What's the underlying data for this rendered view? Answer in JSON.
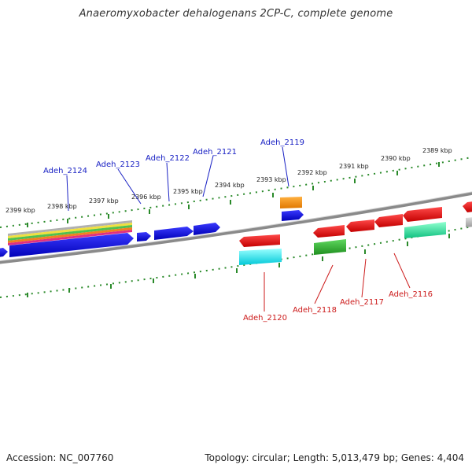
{
  "title": "Anaeromyxobacter dehalogenans 2CP-C, complete genome",
  "footer": {
    "accession": "Accession: NC_007760",
    "summary": "Topology: circular; Length: 5,013,479 bp; Genes: 4,404"
  },
  "scale_labels": [
    "2399 kbp",
    "2398 kbp",
    "2397 kbp",
    "2396 kbp",
    "2395 kbp",
    "2394 kbp",
    "2393 kbp",
    "2392 kbp",
    "2391 kbp",
    "2390 kbp",
    "2389 kbp"
  ],
  "upper_gene_labels": [
    "Adeh_2124",
    "Adeh_2123",
    "Adeh_2122",
    "Adeh_2121",
    "Adeh_2119"
  ],
  "lower_gene_labels": [
    "Adeh_2120",
    "Adeh_2118",
    "Adeh_2117",
    "Adeh_2116"
  ],
  "colors": {
    "forward_gene": "#1a1ae6",
    "reverse_gene": "#e61a1a",
    "backbone": "#7a7a7a",
    "ticks": "#2a8a2a",
    "upper_label": "#1a22c4",
    "lower_label": "#cc1a1a"
  }
}
